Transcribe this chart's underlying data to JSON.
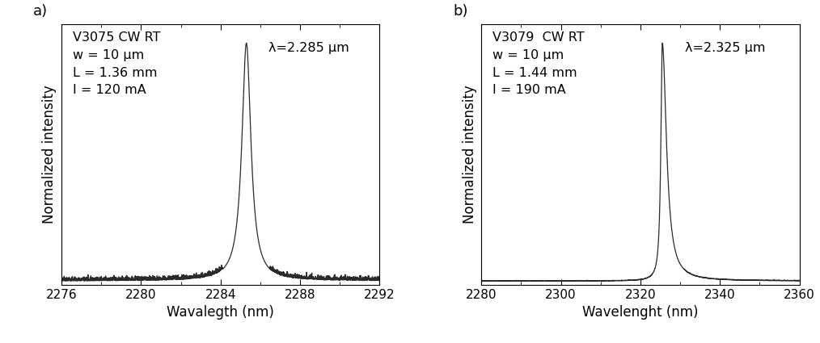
{
  "panel_a": {
    "label": "a)",
    "sample": "V3075 CW RT",
    "w": "w = 10 μm",
    "L": "L = 1.36 mm",
    "I": "I = 120 mA",
    "lambda_label": "λ=2.285 μm",
    "peak_nm": 2285.3,
    "fwhm_nm": 0.55,
    "noise_amp": 0.008,
    "noise_seed": 7,
    "xlim": [
      2276,
      2292
    ],
    "xticks": [
      2276,
      2280,
      2284,
      2288,
      2292
    ],
    "xlabel": "Wavalegth (nm)",
    "ylabel": "Normalized intensity",
    "asymmetry": 1.0
  },
  "panel_b": {
    "label": "b)",
    "sample": "V3079  CW RT",
    "w": "w = 10 μm",
    "L": "L = 1.44 mm",
    "I": "I = 190 mA",
    "lambda_label": "λ=2.325 μm",
    "peak_nm": 2325.5,
    "fwhm_nm": 2.5,
    "noise_amp": 0.001,
    "noise_seed": 3,
    "xlim": [
      2280,
      2360
    ],
    "xticks": [
      2280,
      2300,
      2320,
      2340,
      2360
    ],
    "xlabel": "Wavelenght (nm)",
    "ylabel": "Normalized intensity",
    "asymmetry": 0.35
  },
  "line_color": "#2a2a2a",
  "line_width": 0.9,
  "bg_color": "#ffffff",
  "annotation_fontsize": 11.5,
  "axis_label_fontsize": 12,
  "tick_fontsize": 11
}
